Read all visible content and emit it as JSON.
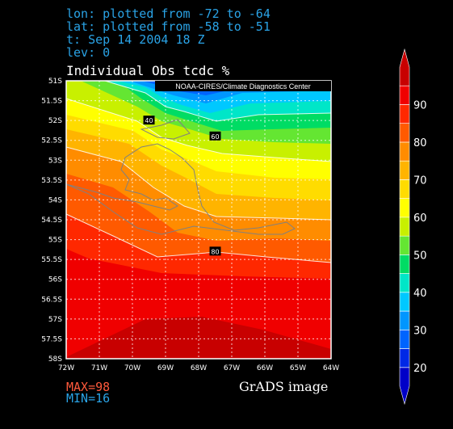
{
  "header": {
    "lon_line": "lon: plotted from -72 to -64",
    "lat_line": "lat: plotted from -58 to -51",
    "time_line": "t: Sep 14 2004 18 Z",
    "lev_line": "lev: 0"
  },
  "credit": "NOAA-CIRES/Climate Diagnostics Center",
  "footer": {
    "max": "MAX=98",
    "min": "MIN=16",
    "grads": "GrADS image"
  },
  "chart_data": {
    "type": "heatmap",
    "title": "Individual Obs tcdc %",
    "x_ticks": [
      "72W",
      "71W",
      "70W",
      "69W",
      "68W",
      "67W",
      "66W",
      "65W",
      "64W"
    ],
    "y_ticks": [
      "51S",
      "51.5S",
      "52S",
      "52.5S",
      "53S",
      "53.5S",
      "54S",
      "54.5S",
      "55S",
      "55.5S",
      "56S",
      "56.5S",
      "57S",
      "57.5S",
      "58S"
    ],
    "xlim": [
      -72,
      -64
    ],
    "ylim": [
      -58,
      -51
    ],
    "grid": true,
    "legend_position": "right",
    "contour_labels": [
      {
        "text": "40",
        "lon": -69.5,
        "lat": -52.0
      },
      {
        "text": "60",
        "lon": -67.5,
        "lat": -52.4
      },
      {
        "text": "80",
        "lon": -67.5,
        "lat": -55.3
      }
    ],
    "colorbar": {
      "labels": [
        "20",
        "30",
        "40",
        "50",
        "60",
        "70",
        "80",
        "90"
      ],
      "levels": [
        15,
        20,
        25,
        30,
        35,
        40,
        45,
        50,
        55,
        60,
        65,
        70,
        75,
        80,
        85,
        90,
        95,
        100
      ],
      "colors": [
        "#0000c8",
        "#0028e6",
        "#0064ff",
        "#0096ff",
        "#00c8ff",
        "#00e6c8",
        "#00dc64",
        "#64e632",
        "#c8f000",
        "#ffff00",
        "#ffdc00",
        "#ffb400",
        "#ff8c00",
        "#ff5a00",
        "#ff2800",
        "#f00000",
        "#c80000"
      ]
    },
    "max": 98,
    "min": 16
  }
}
